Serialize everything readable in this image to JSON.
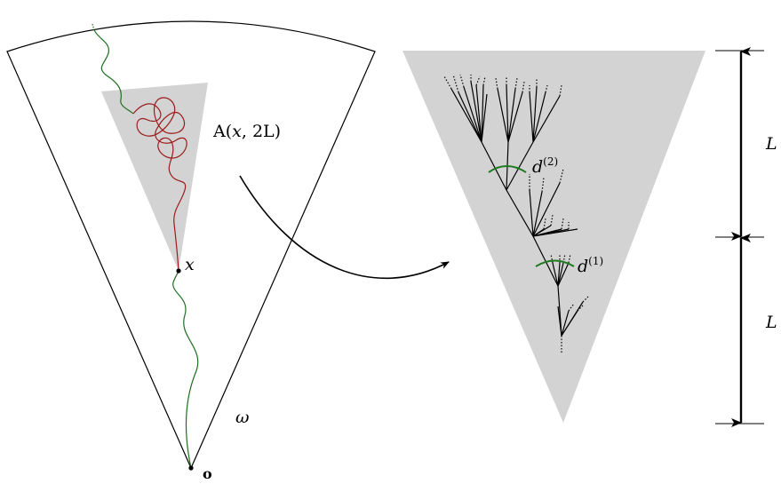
{
  "labels": {
    "cone": "ω",
    "origin": "o",
    "point": "x",
    "annulus_prefix": "A(",
    "annulus_var": "x",
    "annulus_suffix": ", 2L)",
    "d2_base": "d",
    "d2_sup": "(2)",
    "d1_base": "d",
    "d1_sup": "(1)",
    "length_top": "L",
    "length_bottom": "L"
  },
  "colors": {
    "cone_fill": "#d3d3d3",
    "green_path": "#1f6e1f",
    "red_path": "#9b1b1b",
    "arc_green": "#1f7a1f",
    "ink": "#000000"
  }
}
